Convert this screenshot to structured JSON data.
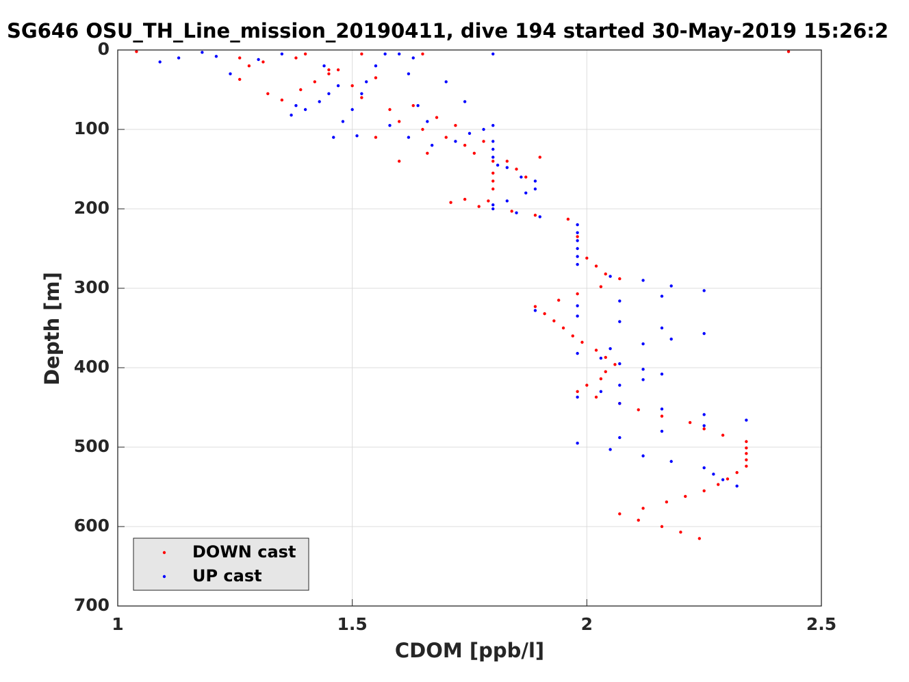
{
  "chart_data": {
    "type": "scatter",
    "title": "SG646 OSU_TH_Line_mission_20190411, dive 194 started 30-May-2019 15:26:2",
    "xlabel": "CDOM [ppb/l]",
    "ylabel": "Depth [m]",
    "xlim": [
      1,
      2.5
    ],
    "xticks": [
      1,
      1.5,
      2,
      2.5
    ],
    "ylim": [
      0,
      700
    ],
    "yticks": [
      0,
      100,
      200,
      300,
      400,
      500,
      600,
      700
    ],
    "y_reversed": true,
    "grid": true,
    "legend": "lower left",
    "series": [
      {
        "name": "DOWN cast",
        "color": "#ff0000",
        "x": [
          1.04,
          2.43,
          1.26,
          1.28,
          1.31,
          1.26,
          1.32,
          1.35,
          1.39,
          1.42,
          1.45,
          1.47,
          1.5,
          1.52,
          1.55,
          1.58,
          1.6,
          1.63,
          1.65,
          1.68,
          1.7,
          1.72,
          1.74,
          1.76,
          1.78,
          1.8,
          1.8,
          1.8,
          1.8,
          1.79,
          1.77,
          1.74,
          1.71,
          1.83,
          1.85,
          1.87,
          1.9,
          1.84,
          1.89,
          1.96,
          1.98,
          2.0,
          2.02,
          2.04,
          2.07,
          2.03,
          1.98,
          1.94,
          1.89,
          1.91,
          1.93,
          1.95,
          1.97,
          1.99,
          2.02,
          2.04,
          2.06,
          2.04,
          2.03,
          2.0,
          1.98,
          2.02,
          2.07,
          2.11,
          2.16,
          2.22,
          2.25,
          2.29,
          2.34,
          2.34,
          2.34,
          2.34,
          2.34,
          2.32,
          2.3,
          2.28,
          2.25,
          2.21,
          2.17,
          2.12,
          2.07,
          2.11,
          2.16,
          2.2,
          2.24,
          1.6,
          1.66,
          1.55,
          1.45,
          1.38,
          1.4,
          1.52,
          1.65
        ],
        "values": [
          2,
          2,
          10,
          20,
          15,
          37,
          55,
          63,
          50,
          40,
          30,
          25,
          45,
          60,
          35,
          75,
          90,
          70,
          100,
          85,
          110,
          95,
          120,
          130,
          115,
          140,
          155,
          165,
          175,
          190,
          197,
          188,
          192,
          140,
          150,
          160,
          135,
          203,
          208,
          213,
          235,
          262,
          272,
          282,
          288,
          298,
          307,
          315,
          323,
          332,
          341,
          350,
          360,
          368,
          378,
          387,
          396,
          405,
          414,
          422,
          430,
          437,
          445,
          453,
          461,
          469,
          477,
          485,
          493,
          501,
          508,
          516,
          524,
          532,
          540,
          547,
          555,
          562,
          569,
          577,
          584,
          592,
          600,
          607,
          615,
          140,
          130,
          110,
          25,
          10,
          5,
          5,
          5
        ]
      },
      {
        "name": "UP cast",
        "color": "#0000ff",
        "x": [
          1.09,
          1.13,
          1.18,
          1.21,
          1.24,
          1.3,
          1.35,
          1.38,
          1.37,
          1.4,
          1.43,
          1.45,
          1.47,
          1.44,
          1.48,
          1.5,
          1.52,
          1.53,
          1.55,
          1.57,
          1.6,
          1.62,
          1.64,
          1.66,
          1.58,
          1.62,
          1.67,
          1.72,
          1.75,
          1.78,
          1.8,
          1.8,
          1.8,
          1.8,
          1.81,
          1.83,
          1.86,
          1.89,
          1.89,
          1.87,
          1.83,
          1.8,
          1.8,
          1.85,
          1.9,
          1.98,
          1.98,
          1.98,
          1.98,
          1.98,
          1.98,
          2.05,
          2.12,
          2.18,
          2.25,
          2.16,
          2.07,
          1.98,
          1.89,
          1.98,
          2.07,
          2.16,
          2.25,
          2.18,
          2.12,
          2.05,
          1.98,
          2.03,
          2.07,
          2.12,
          2.16,
          2.12,
          2.07,
          2.03,
          1.98,
          2.07,
          2.16,
          2.25,
          2.34,
          2.25,
          2.16,
          2.07,
          1.98,
          2.05,
          2.12,
          2.18,
          2.25,
          2.27,
          2.29,
          2.32,
          1.8,
          1.7,
          1.74,
          1.63,
          1.46,
          1.51
        ],
        "values": [
          15,
          10,
          3,
          8,
          30,
          12,
          5,
          70,
          82,
          75,
          65,
          55,
          45,
          20,
          90,
          75,
          55,
          40,
          20,
          5,
          5,
          30,
          70,
          90,
          95,
          110,
          120,
          115,
          105,
          100,
          95,
          115,
          125,
          135,
          145,
          148,
          160,
          165,
          175,
          180,
          190,
          195,
          200,
          205,
          210,
          220,
          230,
          240,
          250,
          260,
          270,
          285,
          290,
          297,
          303,
          310,
          316,
          322,
          328,
          335,
          342,
          350,
          357,
          364,
          370,
          376,
          382,
          388,
          395,
          402,
          408,
          415,
          422,
          430,
          437,
          445,
          452,
          459,
          466,
          473,
          480,
          488,
          495,
          503,
          511,
          518,
          526,
          534,
          541,
          549,
          5,
          40,
          65,
          10,
          110,
          108
        ]
      }
    ]
  }
}
